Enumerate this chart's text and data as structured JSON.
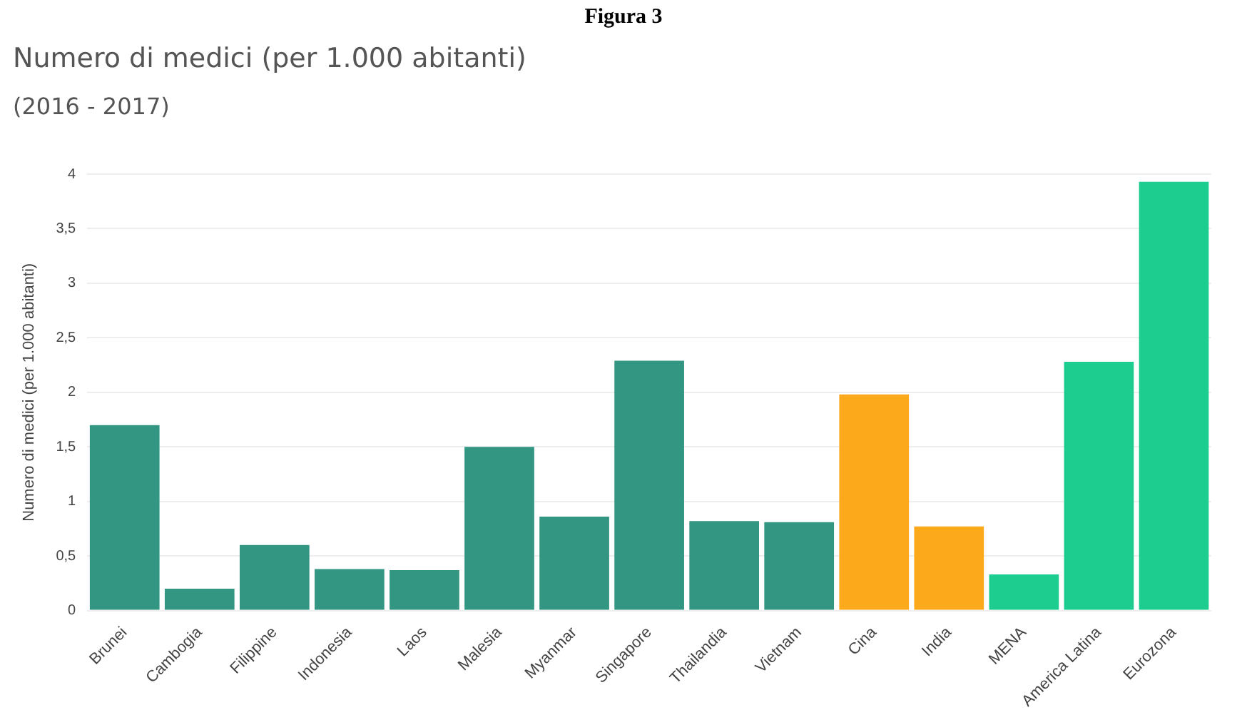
{
  "chart_data": {
    "type": "bar",
    "title": "Numero di medici (per 1.000 abitanti)",
    "subtitle": "(2016 - 2017)",
    "annotations": [
      "Figura 3"
    ],
    "ylabel": "Numero di medici (per 1.000 abitanti)",
    "categories": [
      "Brunei",
      "Cambogia",
      "Filippine",
      "Indonesia",
      "Laos",
      "Malesia",
      "Myanmar",
      "Singapore",
      "Thailandia",
      "Vietnam",
      "Cina",
      "India",
      "MENA",
      "America Latina",
      "Eurozona"
    ],
    "values": [
      1.7,
      0.2,
      0.6,
      0.38,
      0.37,
      1.5,
      0.86,
      2.29,
      0.82,
      0.81,
      1.98,
      0.77,
      0.33,
      2.28,
      3.93
    ],
    "colors": [
      "#339683",
      "#339683",
      "#339683",
      "#339683",
      "#339683",
      "#339683",
      "#339683",
      "#339683",
      "#339683",
      "#339683",
      "#fca91b",
      "#fca91b",
      "#1dcc8f",
      "#1dcc8f",
      "#1dcc8f"
    ],
    "ylim": [
      0,
      4
    ],
    "yticks": [
      0,
      {
        "value": 0.5,
        "label": "0,5"
      },
      1,
      {
        "value": 1.5,
        "label": "1,5"
      },
      2,
      {
        "value": 2.5,
        "label": "2,5"
      },
      3,
      {
        "value": 3.5,
        "label": "3,5"
      },
      4
    ],
    "grid": "y",
    "legend": false
  }
}
